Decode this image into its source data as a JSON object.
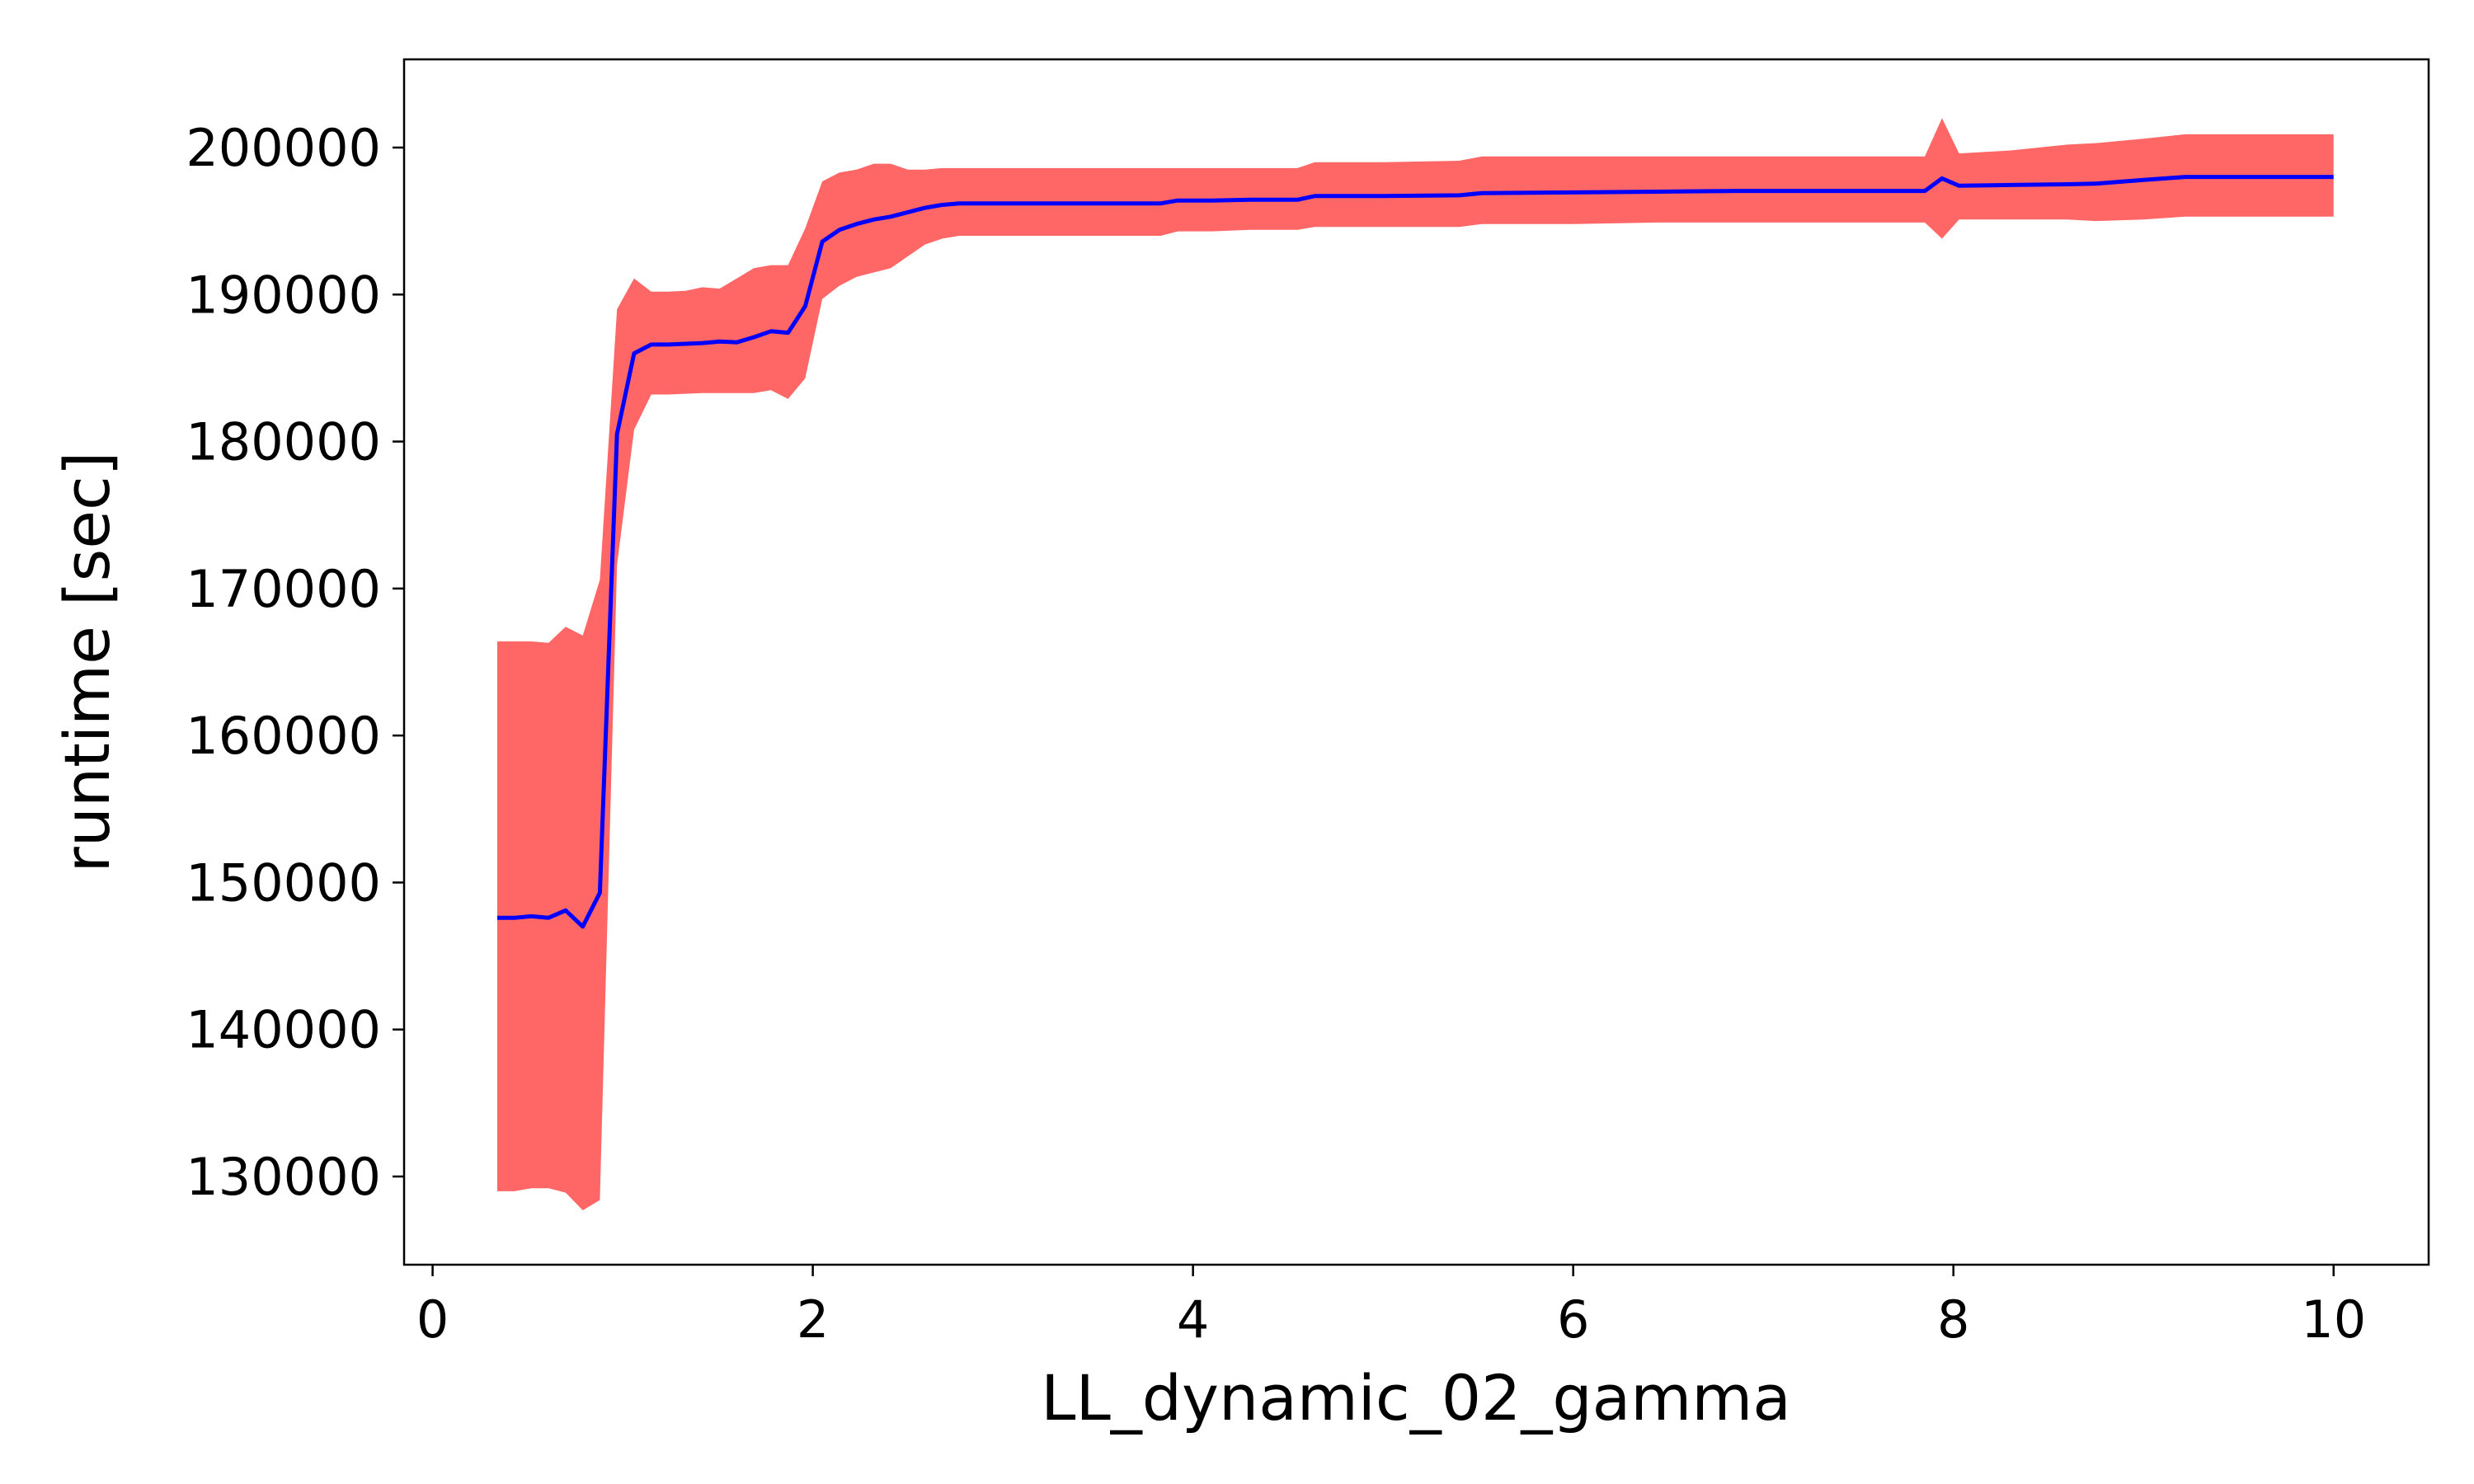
{
  "chart_data": {
    "type": "line",
    "title": "",
    "xlabel": "LL_dynamic_02_gamma",
    "ylabel": "runtime [sec]",
    "xlim": [
      -0.15,
      10.5
    ],
    "ylim": [
      124000,
      206000
    ],
    "xticks": [
      0,
      2,
      4,
      6,
      8,
      10
    ],
    "yticks": [
      130000,
      140000,
      150000,
      160000,
      170000,
      180000,
      190000,
      200000
    ],
    "grid": false,
    "legend": "none",
    "colors": {
      "band": "#ff6666",
      "line": "#0000ff",
      "axis": "#000000"
    },
    "series": [
      {
        "x": [
          0.34,
          0.43,
          0.52,
          0.61,
          0.7,
          0.79,
          0.88,
          0.97,
          1.06,
          1.15,
          1.24,
          1.33,
          1.42,
          1.51,
          1.6,
          1.69,
          1.78,
          1.87,
          1.96,
          2.05,
          2.14,
          2.23,
          2.32,
          2.41,
          2.5,
          2.59,
          2.68,
          2.77,
          2.86,
          2.95,
          3.2,
          3.5,
          3.83,
          3.92,
          4.1,
          4.3,
          4.55,
          4.64,
          5.0,
          5.4,
          5.52,
          6.0,
          6.45,
          6.85,
          7.3,
          7.85,
          7.94,
          8.03,
          8.3,
          8.6,
          8.75,
          9.0,
          9.22,
          9.6,
          10.0
        ],
        "y": [
          147600,
          147600,
          147700,
          147600,
          148100,
          147000,
          149300,
          180500,
          186000,
          186600,
          186600,
          186650,
          186700,
          186800,
          186750,
          187100,
          187500,
          187400,
          189200,
          193600,
          194400,
          194800,
          195100,
          195300,
          195600,
          195900,
          196100,
          196200,
          196200,
          196200,
          196200,
          196200,
          196200,
          196400,
          196400,
          196450,
          196450,
          196700,
          196700,
          196750,
          196900,
          196950,
          197000,
          197050,
          197050,
          197050,
          197900,
          197400,
          197450,
          197500,
          197550,
          197800,
          198000,
          198000,
          198000
        ],
        "upper": [
          166400,
          166400,
          166400,
          166300,
          167400,
          166800,
          170600,
          189000,
          191100,
          190200,
          190200,
          190250,
          190500,
          190400,
          191100,
          191800,
          192000,
          192000,
          194500,
          197700,
          198300,
          198500,
          198900,
          198900,
          198500,
          198500,
          198600,
          198600,
          198600,
          198600,
          198600,
          198600,
          198600,
          198600,
          198600,
          198600,
          198600,
          199000,
          199000,
          199100,
          199400,
          199400,
          199400,
          199400,
          199400,
          199400,
          202000,
          199600,
          199800,
          200200,
          200300,
          200600,
          200900,
          200900,
          200900
        ],
        "lower": [
          129000,
          129000,
          129200,
          129200,
          128900,
          127700,
          128400,
          171600,
          180800,
          183200,
          183200,
          183250,
          183300,
          183300,
          183300,
          183300,
          183500,
          182900,
          184300,
          189700,
          190600,
          191200,
          191500,
          191800,
          192600,
          193400,
          193800,
          194000,
          194000,
          194000,
          194000,
          194000,
          194000,
          194300,
          194300,
          194400,
          194400,
          194600,
          194600,
          194600,
          194800,
          194800,
          194900,
          194900,
          194900,
          194900,
          193800,
          195100,
          195100,
          195100,
          195000,
          195100,
          195300,
          195300,
          195300
        ]
      }
    ]
  }
}
